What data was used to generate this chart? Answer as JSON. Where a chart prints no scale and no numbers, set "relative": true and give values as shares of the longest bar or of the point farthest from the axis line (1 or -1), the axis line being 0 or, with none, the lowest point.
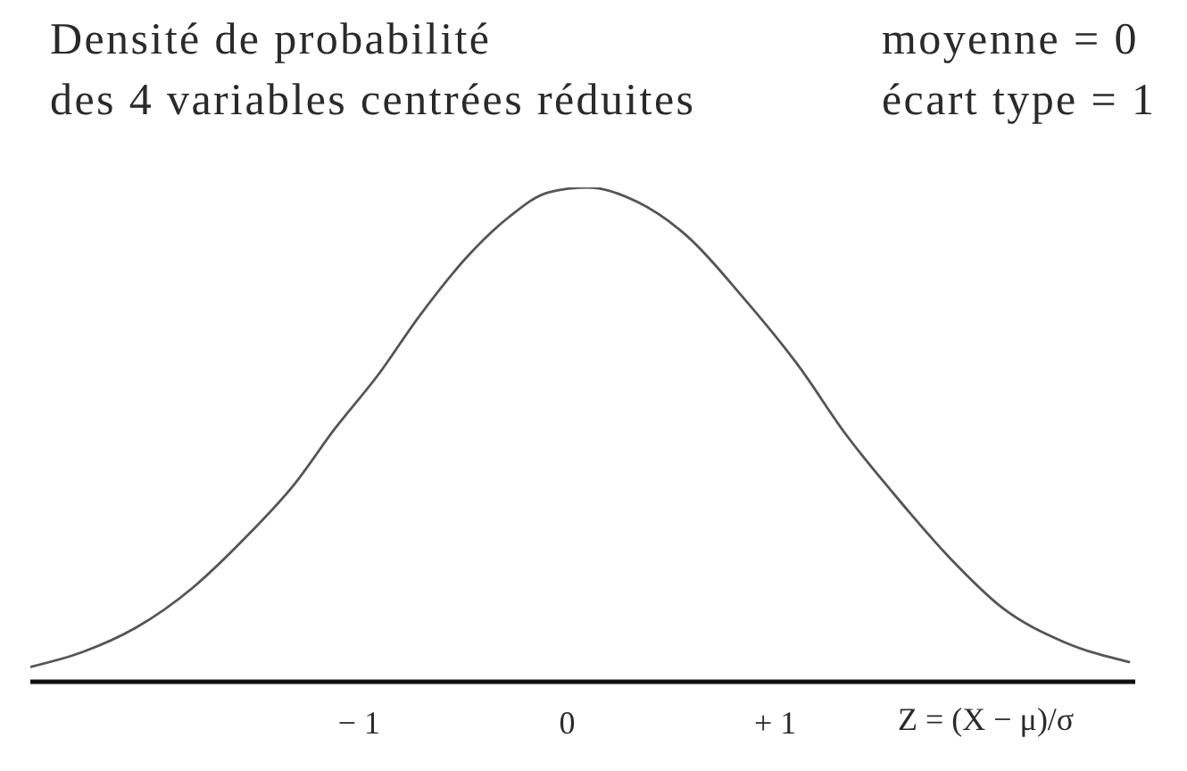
{
  "chart_data": {
    "type": "line",
    "relative": true,
    "title": "Densité de probabilité\ndes 4 variables centrées réduites",
    "annotations": [
      "moyenne = 0",
      "écart type = 1"
    ],
    "xlabel": "Z = (X − μ)/σ",
    "x": [
      -2.58,
      -2.33,
      -2.07,
      -1.8,
      -1.55,
      -1.31,
      -1.12,
      -0.91,
      -0.71,
      -0.48,
      -0.28,
      -0.09,
      0.1,
      0.34,
      0.58,
      0.84,
      1.11,
      1.34,
      1.57,
      1.84,
      2.09,
      2.39,
      2.7
    ],
    "values": [
      0.03,
      0.06,
      0.11,
      0.19,
      0.29,
      0.4,
      0.51,
      0.62,
      0.74,
      0.86,
      0.94,
      0.99,
      1,
      0.97,
      0.9,
      0.78,
      0.64,
      0.5,
      0.38,
      0.25,
      0.15,
      0.08,
      0.04
    ],
    "color": "#555555",
    "xlim": [
      -2.58,
      2.73
    ],
    "xticks": [
      {
        "value": -1,
        "label": "− 1"
      },
      0,
      {
        "value": 1,
        "label": "+ 1"
      }
    ],
    "marker": "none",
    "line_style": "solid"
  }
}
